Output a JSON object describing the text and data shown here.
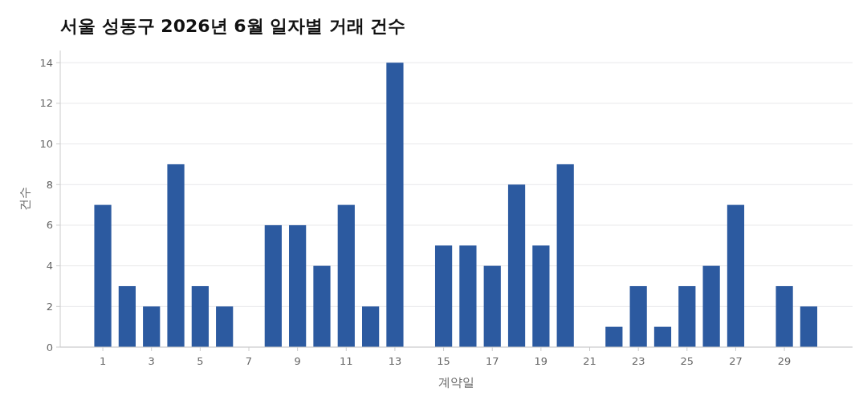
{
  "chart_data": {
    "type": "bar",
    "title": "서울 성동구 2026년 6월 일자별 거래 건수",
    "xlabel": "계약일",
    "ylabel": "건수",
    "x": [
      1,
      2,
      3,
      4,
      5,
      6,
      7,
      8,
      9,
      10,
      11,
      12,
      13,
      14,
      15,
      16,
      17,
      18,
      19,
      20,
      21,
      22,
      23,
      24,
      25,
      26,
      27,
      28,
      29,
      30
    ],
    "values": [
      7,
      3,
      2,
      9,
      3,
      2,
      0,
      6,
      6,
      4,
      7,
      2,
      14,
      0,
      5,
      5,
      4,
      8,
      5,
      9,
      0,
      1,
      3,
      1,
      3,
      4,
      7,
      0,
      3,
      2
    ],
    "color": "#2c5aa0",
    "xlim": [
      -0.75,
      31.8
    ],
    "xticks": [
      1,
      3,
      5,
      7,
      9,
      11,
      13,
      15,
      17,
      19,
      21,
      23,
      25,
      27,
      29
    ],
    "ylim": [
      0,
      14.6
    ],
    "yticks": [
      0,
      2,
      4,
      6,
      8,
      10,
      12,
      14
    ],
    "grid": "y"
  }
}
